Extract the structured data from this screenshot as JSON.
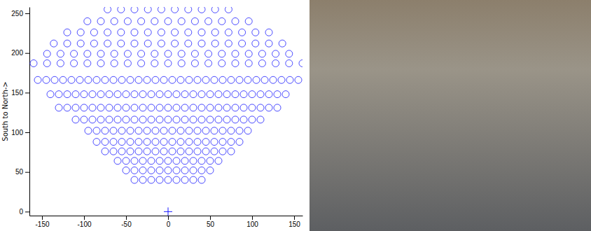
{
  "chart_data": {
    "type": "scatter",
    "y_label": "South to North->",
    "xlim": [
      -165,
      160
    ],
    "ylim": [
      -5,
      258
    ],
    "xticks": [
      -150,
      -100,
      -50,
      0,
      50,
      100,
      150
    ],
    "yticks": [
      0,
      50,
      100,
      150,
      200,
      250
    ],
    "grid": false,
    "series": [
      {
        "marker": "circle",
        "color": "#0000ff",
        "x": [
          -72,
          -56,
          -40,
          -24,
          -8,
          8,
          24,
          40,
          56,
          72,
          -96,
          -80,
          -64,
          -48,
          -32,
          -16,
          0,
          16,
          32,
          48,
          64,
          80,
          96,
          -120,
          -104,
          -88,
          -72,
          -56,
          -40,
          -24,
          -8,
          8,
          24,
          40,
          56,
          72,
          88,
          104,
          120,
          -136,
          -120,
          -104,
          -88,
          -72,
          -56,
          -40,
          -24,
          -8,
          8,
          24,
          40,
          56,
          72,
          88,
          104,
          120,
          136,
          -144,
          -128,
          -112,
          -96,
          -80,
          -64,
          -48,
          -32,
          -16,
          0,
          16,
          32,
          48,
          64,
          80,
          96,
          112,
          128,
          144,
          -160,
          -144,
          -128,
          -112,
          -96,
          -80,
          -64,
          -48,
          -32,
          -16,
          0,
          16,
          32,
          48,
          64,
          80,
          96,
          112,
          128,
          144,
          160,
          -155,
          -145,
          -135,
          -125,
          -115,
          -105,
          -95,
          -85,
          -75,
          -65,
          -55,
          -45,
          -35,
          -25,
          -15,
          -5,
          5,
          15,
          25,
          35,
          45,
          55,
          65,
          75,
          85,
          95,
          105,
          115,
          125,
          135,
          145,
          155,
          -140,
          -130,
          -120,
          -110,
          -100,
          -90,
          -80,
          -70,
          -60,
          -50,
          -40,
          -30,
          -20,
          -10,
          0,
          10,
          20,
          30,
          40,
          50,
          60,
          70,
          80,
          90,
          100,
          110,
          120,
          130,
          140,
          -130,
          -120,
          -110,
          -100,
          -90,
          -80,
          -70,
          -60,
          -50,
          -40,
          -30,
          -20,
          -10,
          0,
          10,
          20,
          30,
          40,
          50,
          60,
          70,
          80,
          90,
          100,
          110,
          120,
          130,
          -110,
          -100,
          -90,
          -80,
          -70,
          -60,
          -50,
          -40,
          -30,
          -20,
          -10,
          0,
          10,
          20,
          30,
          40,
          50,
          60,
          70,
          80,
          90,
          100,
          110,
          -95,
          -85,
          -75,
          -65,
          -55,
          -45,
          -35,
          -25,
          -15,
          -5,
          5,
          15,
          25,
          35,
          45,
          55,
          65,
          75,
          85,
          95,
          -85,
          -75,
          -65,
          -55,
          -45,
          -35,
          -25,
          -15,
          -5,
          5,
          15,
          25,
          35,
          45,
          55,
          65,
          75,
          85,
          -75,
          -65,
          -55,
          -45,
          -35,
          -25,
          -15,
          -5,
          5,
          15,
          25,
          35,
          45,
          55,
          65,
          75,
          -60,
          -50,
          -40,
          -30,
          -20,
          -10,
          0,
          10,
          20,
          30,
          40,
          50,
          60,
          -50,
          -40,
          -30,
          -20,
          -10,
          0,
          10,
          20,
          30,
          40,
          50,
          -40,
          -30,
          -20,
          -10,
          0,
          10,
          20,
          30,
          40
        ],
        "values": [
          255,
          255,
          255,
          255,
          255,
          255,
          255,
          255,
          255,
          255,
          240,
          240,
          240,
          240,
          240,
          240,
          240,
          240,
          240,
          240,
          240,
          240,
          240,
          226,
          226,
          226,
          226,
          226,
          226,
          226,
          226,
          226,
          226,
          226,
          226,
          226,
          226,
          226,
          226,
          212,
          212,
          212,
          212,
          212,
          212,
          212,
          212,
          212,
          212,
          212,
          212,
          212,
          212,
          212,
          212,
          212,
          212,
          199,
          199,
          199,
          199,
          199,
          199,
          199,
          199,
          199,
          199,
          199,
          199,
          199,
          199,
          199,
          199,
          199,
          199,
          199,
          187,
          187,
          187,
          187,
          187,
          187,
          187,
          187,
          187,
          187,
          187,
          187,
          187,
          187,
          187,
          187,
          187,
          187,
          187,
          187,
          187,
          166,
          166,
          166,
          166,
          166,
          166,
          166,
          166,
          166,
          166,
          166,
          166,
          166,
          166,
          166,
          166,
          166,
          166,
          166,
          166,
          166,
          166,
          166,
          166,
          166,
          166,
          166,
          166,
          166,
          166,
          166,
          166,
          148,
          148,
          148,
          148,
          148,
          148,
          148,
          148,
          148,
          148,
          148,
          148,
          148,
          148,
          148,
          148,
          148,
          148,
          148,
          148,
          148,
          148,
          148,
          148,
          148,
          148,
          148,
          148,
          148,
          131,
          131,
          131,
          131,
          131,
          131,
          131,
          131,
          131,
          131,
          131,
          131,
          131,
          131,
          131,
          131,
          131,
          131,
          131,
          131,
          131,
          131,
          131,
          131,
          131,
          131,
          131,
          116,
          116,
          116,
          116,
          116,
          116,
          116,
          116,
          116,
          116,
          116,
          116,
          116,
          116,
          116,
          116,
          116,
          116,
          116,
          116,
          116,
          116,
          116,
          102,
          102,
          102,
          102,
          102,
          102,
          102,
          102,
          102,
          102,
          102,
          102,
          102,
          102,
          102,
          102,
          102,
          102,
          102,
          102,
          88,
          88,
          88,
          88,
          88,
          88,
          88,
          88,
          88,
          88,
          88,
          88,
          88,
          88,
          88,
          88,
          88,
          88,
          76,
          76,
          76,
          76,
          76,
          76,
          76,
          76,
          76,
          76,
          76,
          76,
          76,
          76,
          76,
          76,
          64,
          64,
          64,
          64,
          64,
          64,
          64,
          64,
          64,
          64,
          64,
          64,
          64,
          52,
          52,
          52,
          52,
          52,
          52,
          52,
          52,
          52,
          52,
          52,
          40,
          40,
          40,
          40,
          40,
          40,
          40,
          40,
          40
        ]
      },
      {
        "marker": "plus",
        "color": "#0000ff",
        "x": [
          0
        ],
        "values": [
          0
        ]
      }
    ]
  }
}
